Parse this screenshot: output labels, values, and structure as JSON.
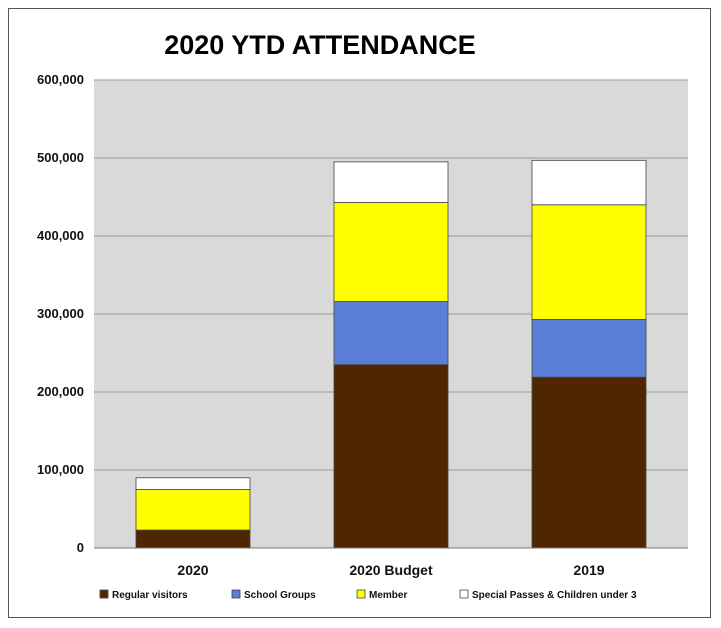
{
  "chart_data": {
    "type": "bar",
    "stacked": true,
    "title": "2020 YTD ATTENDANCE",
    "xlabel": "",
    "ylabel": "",
    "categories": [
      "2020",
      "2020 Budget",
      "2019"
    ],
    "ylim": [
      0,
      600000
    ],
    "yticks": [
      0,
      100000,
      200000,
      300000,
      400000,
      500000,
      600000
    ],
    "ytick_labels": [
      "0",
      "100,000",
      "200,000",
      "300,000",
      "400,000",
      "500,000",
      "600,000"
    ],
    "grid": true,
    "legend_position": "bottom",
    "plot_background": "#d9d9d9",
    "series": [
      {
        "name": "Regular visitors",
        "color": "#4f2600",
        "values": [
          23000,
          235000,
          219000
        ]
      },
      {
        "name": "School Groups",
        "color": "#5b7fd6",
        "values": [
          0,
          81000,
          74000
        ]
      },
      {
        "name": "Member",
        "color": "#ffff00",
        "values": [
          52000,
          127000,
          147000
        ]
      },
      {
        "name": "Special Passes & Children under 3",
        "color": "#ffffff",
        "values": [
          15000,
          52000,
          57000
        ]
      }
    ]
  }
}
